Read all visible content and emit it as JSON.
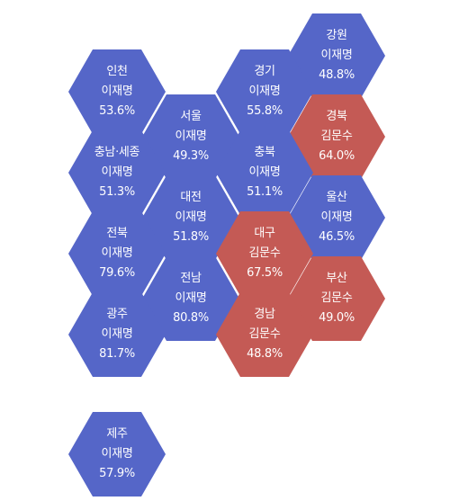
{
  "colors": {
    "이재명": "#5566c8",
    "김문수": "#c45a55"
  },
  "regions": [
    {
      "name": "강원",
      "winner": "이재명",
      "pct": "48.8%"
    },
    {
      "name": "인천",
      "winner": "이재명",
      "pct": "53.6%"
    },
    {
      "name": "경기",
      "winner": "이재명",
      "pct": "55.8%"
    },
    {
      "name": "서울",
      "winner": "이재명",
      "pct": "49.3%"
    },
    {
      "name": "경북",
      "winner": "김문수",
      "pct": "64.0%"
    },
    {
      "name": "충남·세종",
      "winner": "이재명",
      "pct": "51.3%"
    },
    {
      "name": "충북",
      "winner": "이재명",
      "pct": "51.1%"
    },
    {
      "name": "대전",
      "winner": "이재명",
      "pct": "51.8%"
    },
    {
      "name": "울산",
      "winner": "이재명",
      "pct": "46.5%"
    },
    {
      "name": "전북",
      "winner": "이재명",
      "pct": "79.6%"
    },
    {
      "name": "대구",
      "winner": "김문수",
      "pct": "67.5%"
    },
    {
      "name": "전남",
      "winner": "이재명",
      "pct": "80.8%"
    },
    {
      "name": "부산",
      "winner": "김문수",
      "pct": "49.0%"
    },
    {
      "name": "광주",
      "winner": "이재명",
      "pct": "81.7%"
    },
    {
      "name": "경남",
      "winner": "김문수",
      "pct": "48.8%"
    },
    {
      "name": "제주",
      "winner": "이재명",
      "pct": "57.9%"
    }
  ]
}
